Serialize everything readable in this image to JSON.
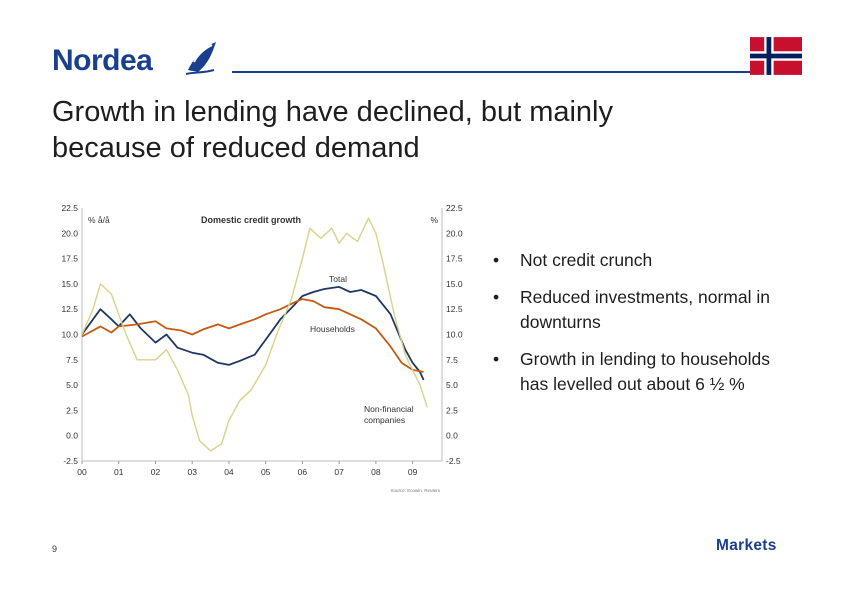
{
  "header": {
    "brand": "Nordea",
    "brand_color": "#1b3f8f",
    "flag_icon": "norway-flag-icon"
  },
  "title": {
    "line1": "Growth in lending have declined, but mainly",
    "line2": "because of reduced demand"
  },
  "bullets": [
    {
      "text": "Not credit crunch"
    },
    {
      "text": "Reduced investments, normal in downturns"
    },
    {
      "text": "Growth in lending to households has levelled out about 6 ½ %"
    }
  ],
  "footer": {
    "page_number": "9",
    "section": "Markets"
  },
  "chart_data": {
    "type": "line",
    "title": "Domestic credit growth",
    "ylabel_left": "% å/å",
    "ylabel_right": "%",
    "ylim": [
      -2.5,
      22.5
    ],
    "yticks": [
      "22.5",
      "20.0",
      "17.5",
      "15.0",
      "12.5",
      "10.0",
      "7.5",
      "5.0",
      "2.5",
      "0.0",
      "-2.5"
    ],
    "xticks": [
      "00",
      "01",
      "02",
      "03",
      "04",
      "05",
      "06",
      "07",
      "08",
      "09"
    ],
    "xlim": [
      2000,
      2009.8
    ],
    "grid": false,
    "series": [
      {
        "name": "Total",
        "color": "#1f3864",
        "points": [
          [
            2000.0,
            10.0
          ],
          [
            2000.5,
            12.5
          ],
          [
            2000.8,
            11.5
          ],
          [
            2001.0,
            10.8
          ],
          [
            2001.3,
            12.0
          ],
          [
            2001.6,
            10.6
          ],
          [
            2002.0,
            9.2
          ],
          [
            2002.3,
            10.0
          ],
          [
            2002.6,
            8.7
          ],
          [
            2003.0,
            8.2
          ],
          [
            2003.3,
            8.0
          ],
          [
            2003.7,
            7.2
          ],
          [
            2004.0,
            7.0
          ],
          [
            2004.3,
            7.4
          ],
          [
            2004.7,
            8.0
          ],
          [
            2005.0,
            9.5
          ],
          [
            2005.4,
            11.5
          ],
          [
            2005.8,
            13.0
          ],
          [
            2006.0,
            13.8
          ],
          [
            2006.3,
            14.2
          ],
          [
            2006.6,
            14.5
          ],
          [
            2007.0,
            14.7
          ],
          [
            2007.3,
            14.2
          ],
          [
            2007.6,
            14.4
          ],
          [
            2008.0,
            13.8
          ],
          [
            2008.4,
            12.0
          ],
          [
            2008.8,
            8.5
          ],
          [
            2009.0,
            7.2
          ],
          [
            2009.2,
            6.3
          ],
          [
            2009.3,
            5.5
          ]
        ]
      },
      {
        "name": "Households",
        "color": "#c55a11",
        "points": [
          [
            2000.0,
            9.8
          ],
          [
            2000.5,
            10.8
          ],
          [
            2000.8,
            10.2
          ],
          [
            2001.0,
            10.8
          ],
          [
            2001.5,
            11.0
          ],
          [
            2002.0,
            11.3
          ],
          [
            2002.3,
            10.6
          ],
          [
            2002.7,
            10.4
          ],
          [
            2003.0,
            10.0
          ],
          [
            2003.3,
            10.5
          ],
          [
            2003.7,
            11.0
          ],
          [
            2004.0,
            10.6
          ],
          [
            2004.3,
            11.0
          ],
          [
            2004.7,
            11.5
          ],
          [
            2005.0,
            12.0
          ],
          [
            2005.4,
            12.5
          ],
          [
            2005.8,
            13.2
          ],
          [
            2006.0,
            13.5
          ],
          [
            2006.3,
            13.3
          ],
          [
            2006.6,
            12.7
          ],
          [
            2007.0,
            12.5
          ],
          [
            2007.3,
            12.0
          ],
          [
            2007.6,
            11.5
          ],
          [
            2008.0,
            10.6
          ],
          [
            2008.4,
            8.8
          ],
          [
            2008.7,
            7.2
          ],
          [
            2009.0,
            6.5
          ],
          [
            2009.3,
            6.3
          ]
        ]
      },
      {
        "name": "Non-financial companies",
        "color": "#d8d28a",
        "points": [
          [
            2000.0,
            10.0
          ],
          [
            2000.3,
            12.5
          ],
          [
            2000.5,
            15.0
          ],
          [
            2000.8,
            14.0
          ],
          [
            2001.0,
            12.0
          ],
          [
            2001.2,
            10.0
          ],
          [
            2001.5,
            7.5
          ],
          [
            2002.0,
            7.5
          ],
          [
            2002.3,
            8.5
          ],
          [
            2002.6,
            6.5
          ],
          [
            2002.9,
            4.0
          ],
          [
            2003.0,
            2.0
          ],
          [
            2003.2,
            -0.5
          ],
          [
            2003.5,
            -1.5
          ],
          [
            2003.8,
            -0.8
          ],
          [
            2004.0,
            1.5
          ],
          [
            2004.3,
            3.5
          ],
          [
            2004.6,
            4.5
          ],
          [
            2005.0,
            7.0
          ],
          [
            2005.3,
            10.0
          ],
          [
            2005.7,
            13.5
          ],
          [
            2006.0,
            17.5
          ],
          [
            2006.2,
            20.5
          ],
          [
            2006.5,
            19.5
          ],
          [
            2006.8,
            20.5
          ],
          [
            2007.0,
            19.0
          ],
          [
            2007.2,
            20.0
          ],
          [
            2007.5,
            19.2
          ],
          [
            2007.8,
            21.5
          ],
          [
            2008.0,
            20.0
          ],
          [
            2008.2,
            17.0
          ],
          [
            2008.5,
            12.0
          ],
          [
            2008.8,
            8.0
          ],
          [
            2009.0,
            6.5
          ],
          [
            2009.2,
            5.0
          ],
          [
            2009.4,
            2.8
          ]
        ]
      }
    ],
    "annotations": [
      {
        "text": "Total",
        "series": "Total"
      },
      {
        "text": "Households",
        "series": "Households"
      },
      {
        "text": "Non-financial",
        "series": "Non-financial companies"
      },
      {
        "text": "companies",
        "series": "Non-financial companies"
      }
    ],
    "source": "Source: Ecowin, Reuters"
  }
}
